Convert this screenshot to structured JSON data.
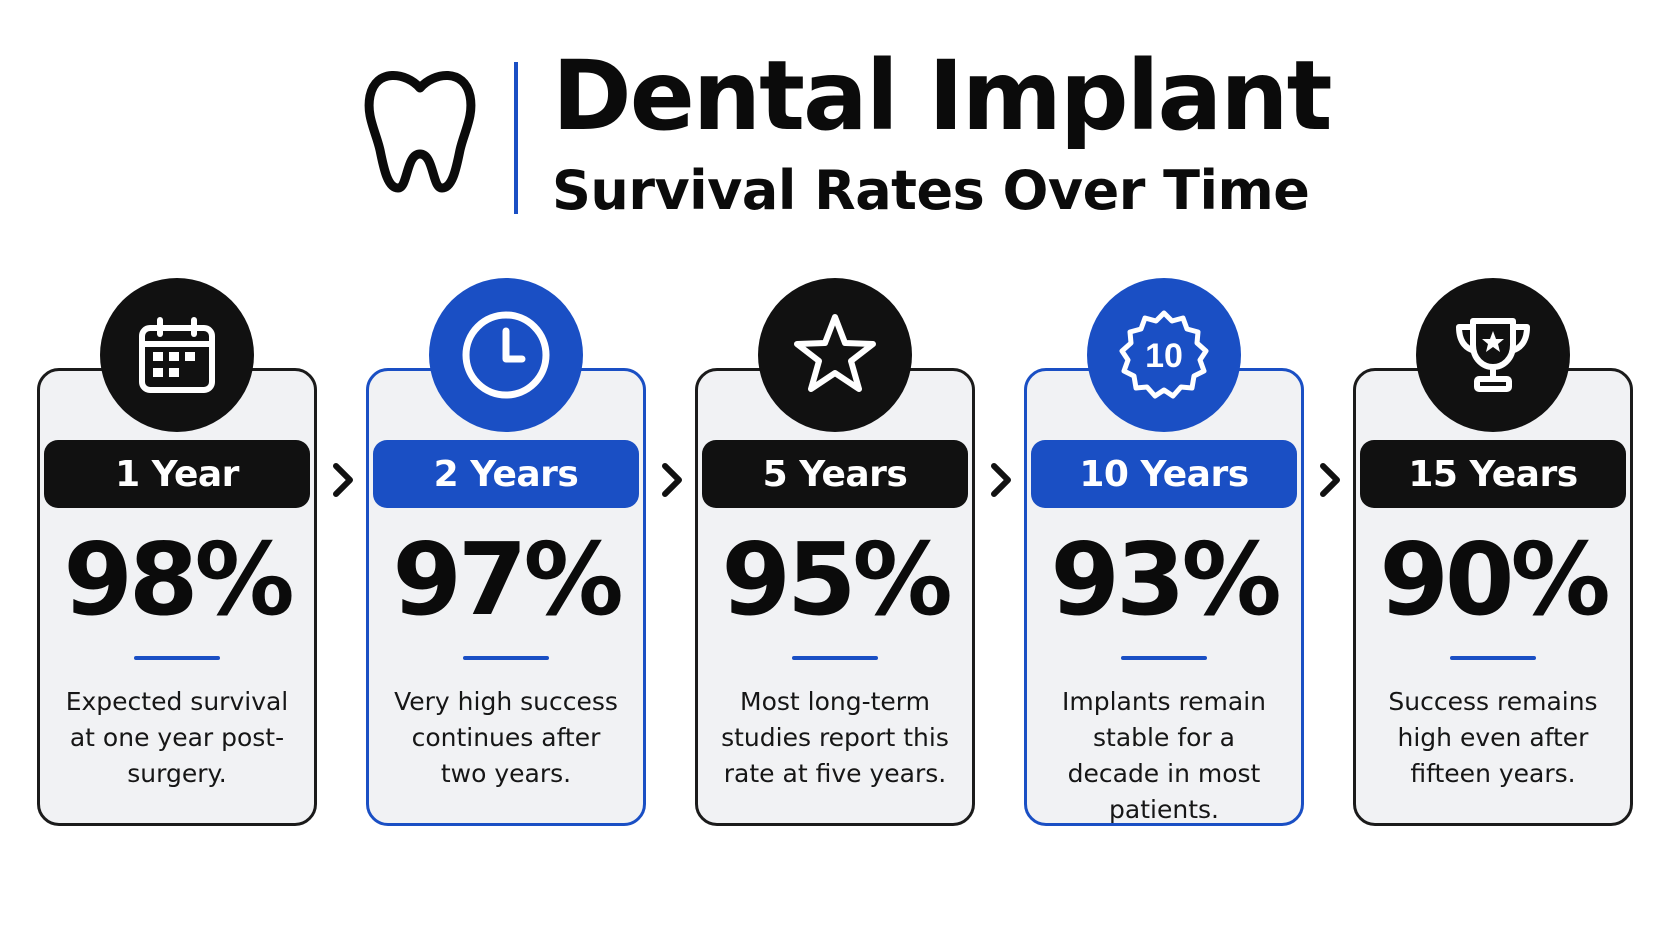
{
  "header": {
    "title": "Dental Implant",
    "subtitle": "Survival Rates Over Time",
    "icon": "tooth-icon"
  },
  "colors": {
    "accent": "#1a4fc4",
    "dark": "#111111",
    "card_bg": "#f1f2f4"
  },
  "stages": [
    {
      "label": "1 Year",
      "percent": "98%",
      "value": 98,
      "description": "Expected survival at one year post-surgery.",
      "icon": "calendar-icon",
      "accent": false
    },
    {
      "label": "2 Years",
      "percent": "97%",
      "value": 97,
      "description": "Very high success continues after two years.",
      "icon": "clock-icon",
      "accent": true
    },
    {
      "label": "5 Years",
      "percent": "95%",
      "value": 95,
      "description": "Most long-term studies report this rate at five years.",
      "icon": "star-icon",
      "accent": false
    },
    {
      "label": "10 Years",
      "percent": "93%",
      "value": 93,
      "description": "Implants remain stable for a decade in most patients.",
      "icon": "badge-10-icon",
      "accent": true,
      "badge_text": "10"
    },
    {
      "label": "15 Years",
      "percent": "90%",
      "value": 90,
      "description": "Success remains high even after fifteen years.",
      "icon": "trophy-icon",
      "accent": false
    }
  ]
}
